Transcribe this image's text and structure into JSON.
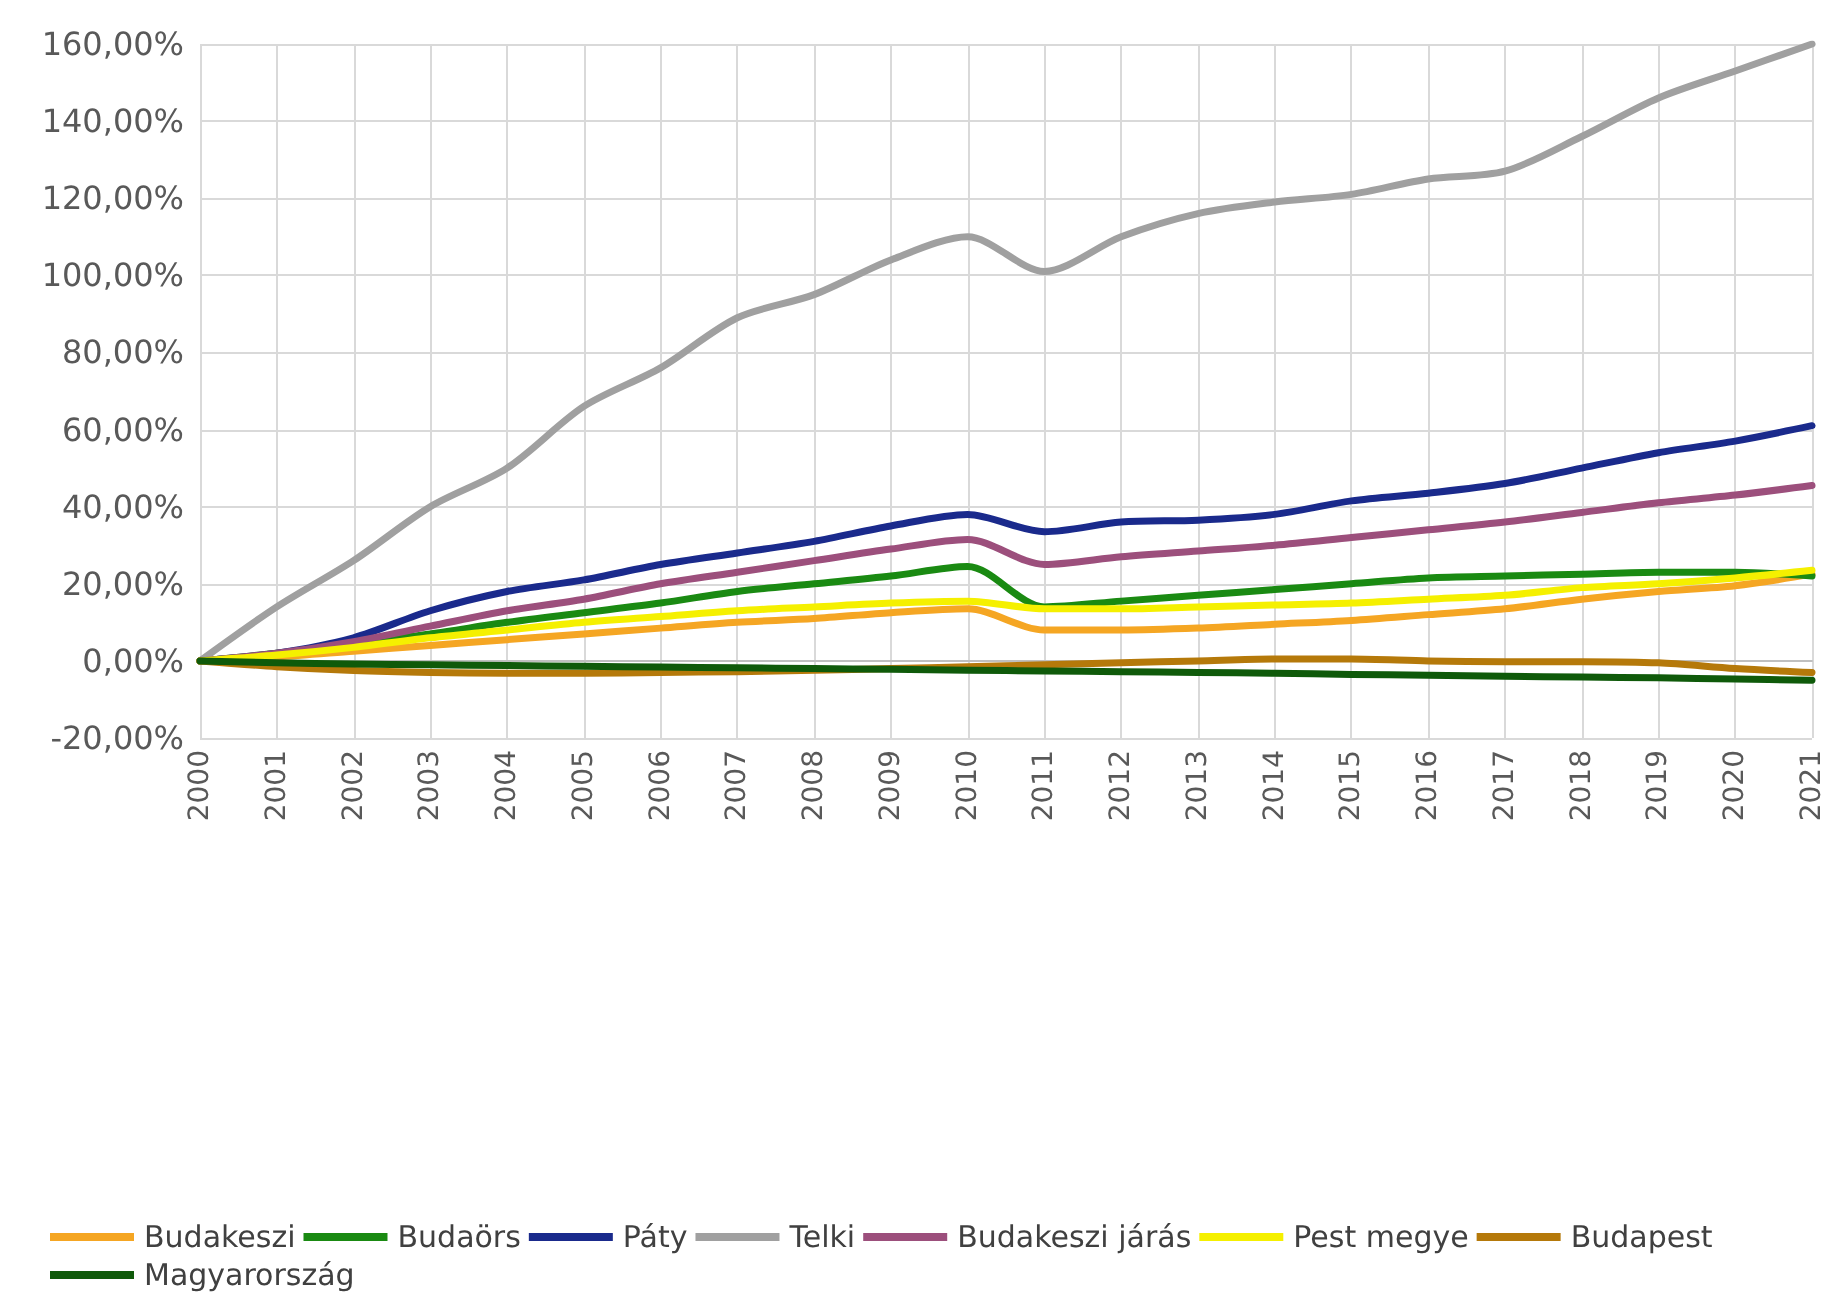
{
  "chart_data": {
    "type": "line",
    "categories": [
      "2000",
      "2001",
      "2002",
      "2003",
      "2004",
      "2005",
      "2006",
      "2007",
      "2008",
      "2009",
      "2010",
      "2011",
      "2012",
      "2013",
      "2014",
      "2015",
      "2016",
      "2017",
      "2018",
      "2019",
      "2020",
      "2021"
    ],
    "series": [
      {
        "name": "Budakeszi",
        "color": "#f5a623",
        "values": [
          0,
          1,
          2.5,
          4,
          5.5,
          7,
          8.5,
          10,
          11,
          12.5,
          13.5,
          8,
          8,
          8.5,
          9.5,
          10.5,
          12,
          13.5,
          16,
          18,
          19.5,
          22.5
        ]
      },
      {
        "name": "Budaörs",
        "color": "#1a8a12",
        "values": [
          0,
          2,
          4.5,
          7,
          10,
          12.5,
          15,
          18,
          20,
          22,
          24.5,
          14,
          15.5,
          17,
          18.5,
          20,
          21.5,
          22,
          22.5,
          23,
          23,
          22
        ]
      },
      {
        "name": "Páty",
        "color": "#1a2a8c",
        "values": [
          0,
          2,
          6,
          13,
          18,
          21,
          25,
          28,
          31,
          35,
          38,
          33.5,
          36,
          36.5,
          38,
          41.5,
          43.5,
          46,
          50,
          54,
          57,
          61
        ]
      },
      {
        "name": "Telki",
        "color": "#a0a0a0",
        "values": [
          0,
          14,
          26,
          40,
          50,
          66,
          76,
          89,
          95,
          104,
          110,
          101,
          110,
          116,
          119,
          121,
          125,
          127,
          136,
          146,
          153,
          160
        ]
      },
      {
        "name": "Budakeszi járás",
        "color": "#9c4f7c",
        "values": [
          0,
          2,
          5,
          9,
          13,
          16,
          20,
          23,
          26,
          29,
          31.5,
          25,
          27,
          28.5,
          30,
          32,
          34,
          36,
          38.5,
          41,
          43,
          45.5
        ]
      },
      {
        "name": "Pest megye",
        "color": "#f5f000",
        "values": [
          0,
          1.5,
          3.5,
          6,
          8,
          10,
          11.5,
          13,
          14,
          15,
          15.5,
          13.5,
          13.5,
          14,
          14.5,
          15,
          16,
          17,
          19,
          20,
          21.5,
          23.5
        ]
      },
      {
        "name": "Budapest",
        "color": "#b5790a",
        "values": [
          0,
          -1.5,
          -2.5,
          -3,
          -3.2,
          -3.2,
          -3,
          -2.8,
          -2.4,
          -2,
          -1.5,
          -1,
          -0.5,
          0,
          0.5,
          0.5,
          0,
          -0.2,
          -0.2,
          -0.5,
          -2,
          -3
        ]
      },
      {
        "name": "Magyarország",
        "color": "#0f5a0a",
        "values": [
          0,
          -0.5,
          -0.8,
          -1,
          -1.2,
          -1.4,
          -1.6,
          -1.8,
          -2,
          -2.2,
          -2.4,
          -2.6,
          -2.8,
          -3,
          -3.2,
          -3.5,
          -3.7,
          -4,
          -4.2,
          -4.4,
          -4.7,
          -5
        ]
      }
    ],
    "ylim": [
      -20,
      160
    ],
    "yticks": [
      {
        "value": -20,
        "label": "-20,00%"
      },
      {
        "value": 0,
        "label": "0,00%"
      },
      {
        "value": 20,
        "label": "20,00%"
      },
      {
        "value": 40,
        "label": "40,00%"
      },
      {
        "value": 60,
        "label": "60,00%"
      },
      {
        "value": 80,
        "label": "80,00%"
      },
      {
        "value": 100,
        "label": "100,00%"
      },
      {
        "value": 120,
        "label": "120,00%"
      },
      {
        "value": 140,
        "label": "140,00%"
      },
      {
        "value": 160,
        "label": "160,00%"
      }
    ],
    "grid": true,
    "legend": "bottom",
    "marker": "none",
    "line_style": "solid"
  }
}
